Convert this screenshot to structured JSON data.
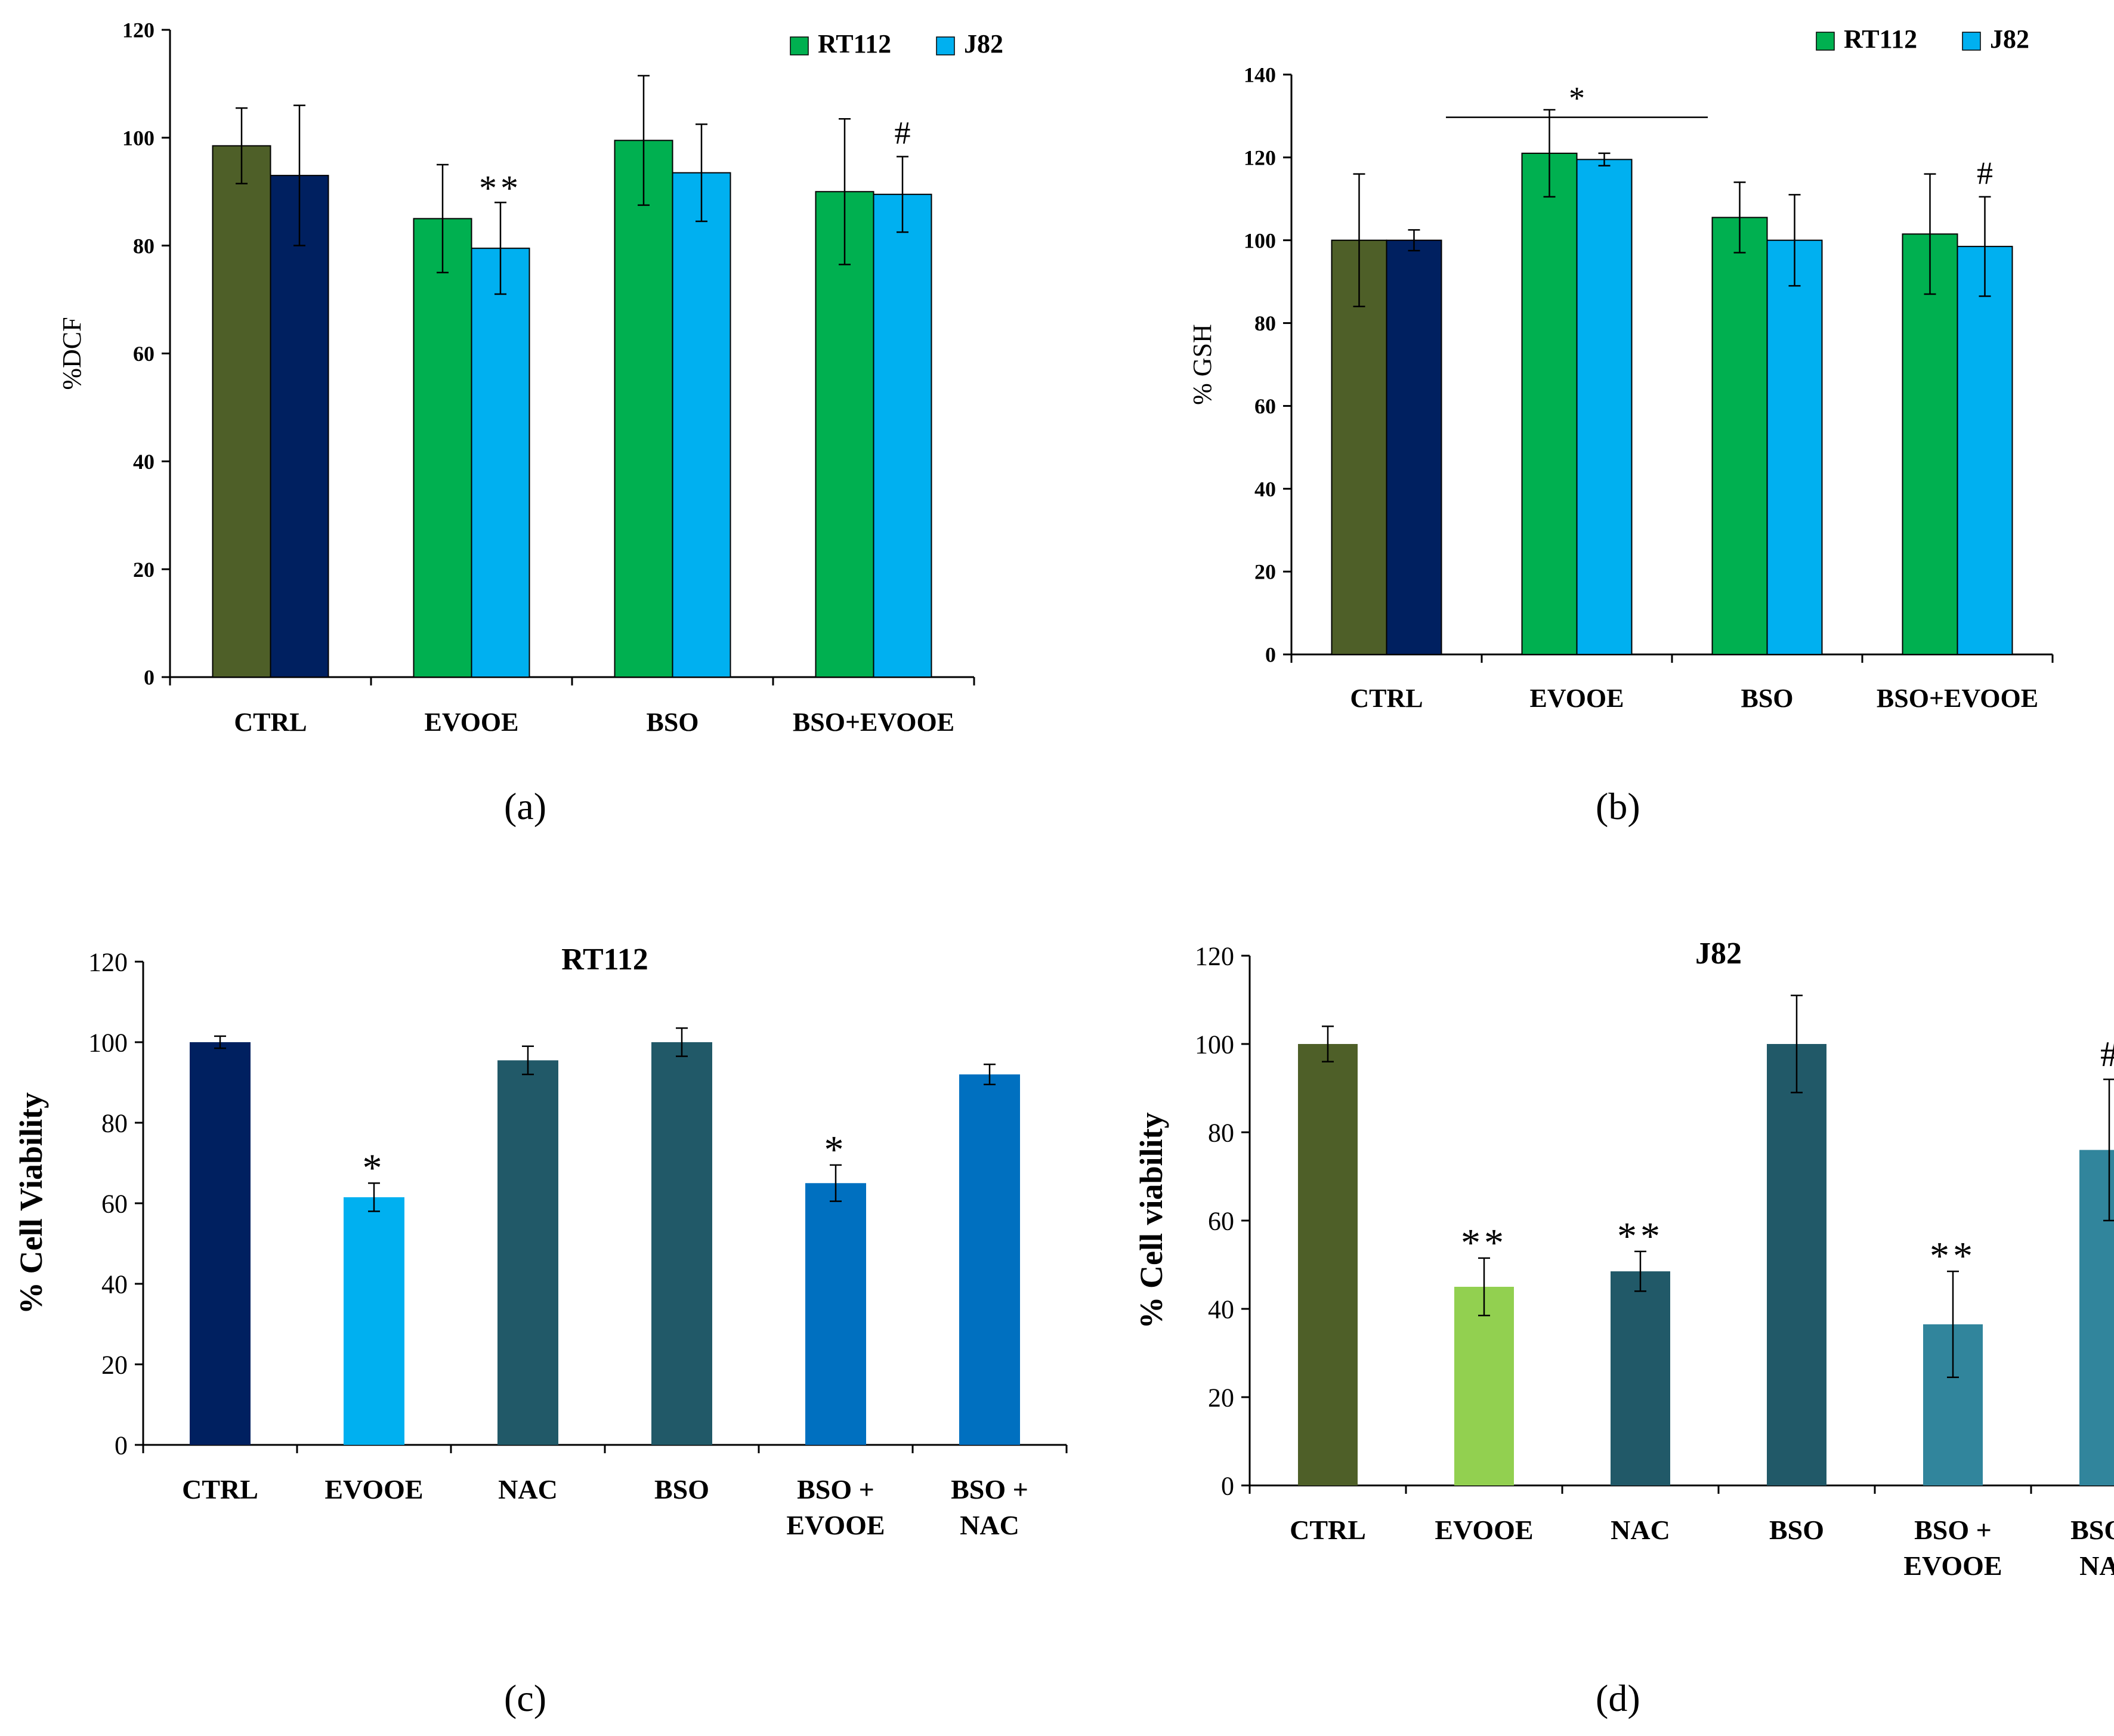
{
  "panel_labels": [
    "(a)",
    "(b)",
    "(c)",
    "(d)"
  ],
  "chart_data": [
    {
      "id": "a",
      "type": "bar",
      "title": "",
      "xlabel": "",
      "ylabel": "%DCF",
      "ylim": [
        0,
        120
      ],
      "yticks": [
        0,
        20,
        40,
        60,
        80,
        100,
        120
      ],
      "categories": [
        "CTRL",
        "EVOOE",
        "BSO",
        "BSO+EVOOE"
      ],
      "legend": [
        "RT112",
        "J82"
      ],
      "legend_colors": [
        "#00B050",
        "#00B0F0"
      ],
      "series": [
        {
          "name": "RT112",
          "values": [
            98.5,
            85,
            99.5,
            90
          ],
          "errors": [
            7,
            10,
            12,
            13.5
          ],
          "colors": [
            "#4E5F28",
            "#00B050",
            "#00B050",
            "#00B050"
          ]
        },
        {
          "name": "J82",
          "values": [
            93,
            79.5,
            93.5,
            89.5
          ],
          "errors": [
            13,
            8.5,
            9,
            7
          ],
          "colors": [
            "#002060",
            "#00B0F0",
            "#00B0F0",
            "#00B0F0"
          ]
        }
      ],
      "annotations": [
        {
          "text": "**",
          "category": 1,
          "series": 1
        },
        {
          "text": "#",
          "category": 3,
          "series": 1
        }
      ]
    },
    {
      "id": "b",
      "type": "bar",
      "title": "",
      "xlabel": "",
      "ylabel": "% GSH",
      "ylim": [
        0,
        140
      ],
      "yticks": [
        0,
        20,
        40,
        60,
        80,
        100,
        120,
        140
      ],
      "categories": [
        "CTRL",
        "EVOOE",
        "BSO",
        "BSO+EVOOE"
      ],
      "legend": [
        "RT112",
        "J82"
      ],
      "legend_colors": [
        "#00B050",
        "#00B0F0"
      ],
      "series": [
        {
          "name": "RT112",
          "values": [
            100,
            121,
            105.5,
            101.5
          ],
          "errors": [
            16,
            10.5,
            8.5,
            14.5
          ],
          "colors": [
            "#4E5F28",
            "#00B050",
            "#00B050",
            "#00B050"
          ]
        },
        {
          "name": "J82",
          "values": [
            100,
            119.5,
            100,
            98.5
          ],
          "errors": [
            2.5,
            1.5,
            11,
            12
          ],
          "colors": [
            "#002060",
            "#00B0F0",
            "#00B0F0",
            "#00B0F0"
          ]
        }
      ],
      "annotations": [
        {
          "text": "#",
          "category": 3,
          "series": 1
        }
      ],
      "bracket": {
        "text": "*",
        "category": 1,
        "value": 134
      }
    },
    {
      "id": "c",
      "type": "bar",
      "title": "RT112",
      "xlabel": "",
      "ylabel": "% Cell Viability",
      "ylim": [
        0,
        120
      ],
      "yticks": [
        0,
        20,
        40,
        60,
        80,
        100,
        120
      ],
      "categories": [
        "CTRL",
        "EVOOE",
        "NAC",
        "BSO",
        "BSO +\nEVOOE",
        "BSO +\nNAC"
      ],
      "series": [
        {
          "name": "RT112",
          "values": [
            100,
            61.5,
            95.5,
            100,
            65,
            92
          ],
          "errors": [
            1.5,
            3.5,
            3.5,
            3.5,
            4.5,
            2.5
          ],
          "colors": [
            "#002060",
            "#00B0F0",
            "#215968",
            "#215968",
            "#0070C0",
            "#0070C0"
          ]
        }
      ],
      "annotations": [
        {
          "text": "*",
          "category": 1,
          "series": 0
        },
        {
          "text": "*",
          "category": 4,
          "series": 0
        }
      ]
    },
    {
      "id": "d",
      "type": "bar",
      "title": "J82",
      "xlabel": "",
      "ylabel": "% Cell viability",
      "ylim": [
        0,
        120
      ],
      "yticks": [
        0,
        20,
        40,
        60,
        80,
        100,
        120
      ],
      "categories": [
        "CTRL",
        "EVOOE",
        "NAC",
        "BSO",
        "BSO +\nEVOOE",
        "BSO +\nNAC"
      ],
      "series": [
        {
          "name": "J82",
          "values": [
            100,
            45,
            48.5,
            100,
            36.5,
            76
          ],
          "errors": [
            4,
            6.5,
            4.5,
            11,
            12,
            16
          ],
          "colors": [
            "#4E5F28",
            "#92D050",
            "#215968",
            "#215968",
            "#31859C",
            "#31859C"
          ]
        }
      ],
      "annotations": [
        {
          "text": "**",
          "category": 1,
          "series": 0
        },
        {
          "text": "**",
          "category": 2,
          "series": 0
        },
        {
          "text": "**",
          "category": 4,
          "series": 0
        },
        {
          "text": "#",
          "category": 5,
          "series": 0
        }
      ]
    }
  ]
}
